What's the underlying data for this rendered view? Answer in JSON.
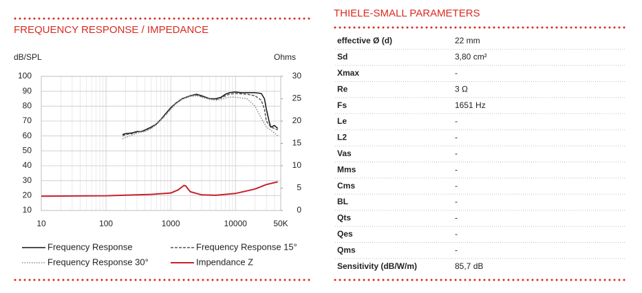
{
  "chart_data": {
    "type": "line",
    "title": "FREQUENCY RESPONSE / IMPEDANCE",
    "y_label": "dB/SPL",
    "y2_label": "Ohms",
    "xscale": "log",
    "grid": true,
    "xlim": [
      10,
      50000
    ],
    "xticks": [
      10,
      100,
      1000,
      10000,
      {
        "value": 50000,
        "label": "50K"
      }
    ],
    "ylim": [
      10,
      100
    ],
    "yticks": [
      10,
      20,
      30,
      40,
      50,
      60,
      70,
      80,
      90,
      100
    ],
    "y2lim": [
      0,
      30
    ],
    "y2ticks": [
      0,
      5,
      10,
      15,
      20,
      25,
      30
    ],
    "series": [
      {
        "name": "Frequency Response",
        "color": "#111111",
        "style": "solid",
        "x": [
          180,
          200,
          250,
          300,
          350,
          400,
          500,
          600,
          700,
          800,
          1000,
          1200,
          1500,
          2000,
          2500,
          3000,
          4000,
          5000,
          6000,
          7000,
          8000,
          10000,
          12000,
          15000,
          20000,
          25000,
          28000,
          30000,
          33000,
          35000,
          40000,
          45000
        ],
        "values": [
          61,
          61.5,
          62,
          63,
          63,
          64,
          66,
          68,
          71,
          74,
          79,
          82,
          85,
          87,
          88,
          87,
          85,
          85,
          86,
          88,
          89,
          89.5,
          89,
          89,
          89,
          88.5,
          85,
          78,
          70,
          66,
          67,
          65
        ]
      },
      {
        "name": "Frequency Response 15°",
        "color": "#555555",
        "style": "dashed",
        "x": [
          180,
          200,
          250,
          300,
          400,
          500,
          600,
          700,
          800,
          1000,
          1200,
          1500,
          2000,
          2500,
          3000,
          4000,
          5000,
          6000,
          7000,
          8000,
          10000,
          15000,
          20000,
          25000,
          28000,
          30000,
          35000,
          40000,
          45000
        ],
        "values": [
          60,
          61,
          61.5,
          62.5,
          63.5,
          65.5,
          68,
          71,
          73.5,
          78.5,
          82,
          85,
          87,
          87.5,
          86.5,
          85,
          84.5,
          85.5,
          87,
          88,
          88.5,
          88,
          87,
          84,
          78,
          70,
          66,
          65,
          64
        ]
      },
      {
        "name": "Frequency Response 30°",
        "color": "#888888",
        "style": "dotted",
        "x": [
          180,
          200,
          250,
          300,
          400,
          500,
          600,
          700,
          800,
          1000,
          1200,
          1500,
          2000,
          2500,
          3000,
          4000,
          5000,
          6000,
          7000,
          8000,
          10000,
          15000,
          20000,
          25000,
          30000,
          40000,
          45000
        ],
        "values": [
          58,
          59,
          60.5,
          62,
          63,
          65,
          67.5,
          70.5,
          73,
          78,
          81.5,
          84.5,
          86.5,
          87,
          86,
          84.5,
          84,
          84.5,
          85.5,
          86,
          86,
          85,
          80,
          72,
          66,
          62,
          60
        ]
      },
      {
        "name": "Impendance Z",
        "color": "#c8202a",
        "style": "solid",
        "axis": "y2",
        "x": [
          10,
          100,
          500,
          1000,
          1300,
          1600,
          1700,
          2000,
          3000,
          5000,
          10000,
          20000,
          30000,
          45000
        ],
        "values": [
          3.2,
          3.3,
          3.6,
          3.9,
          4.6,
          5.6,
          5.5,
          4.2,
          3.5,
          3.4,
          3.8,
          4.8,
          5.8,
          6.4
        ]
      }
    ]
  },
  "parameters": {
    "title": "THIELE-SMALL PARAMETERS",
    "rows": [
      [
        "effective Ø (d)",
        "22 mm"
      ],
      [
        "Sd",
        "3,80 cm²"
      ],
      [
        "Xmax",
        "-"
      ],
      [
        "Re",
        "3 Ω"
      ],
      [
        "Fs",
        "1651 Hz"
      ],
      [
        "Le",
        "-"
      ],
      [
        "L2",
        "-"
      ],
      [
        "Vas",
        "-"
      ],
      [
        "Mms",
        "-"
      ],
      [
        "Cms",
        "-"
      ],
      [
        "BL",
        "-"
      ],
      [
        "Qts",
        "-"
      ],
      [
        "Qes",
        "-"
      ],
      [
        "Qms",
        "-"
      ],
      [
        "Sensitivity (dB/W/m)",
        "85,7 dB"
      ]
    ]
  }
}
